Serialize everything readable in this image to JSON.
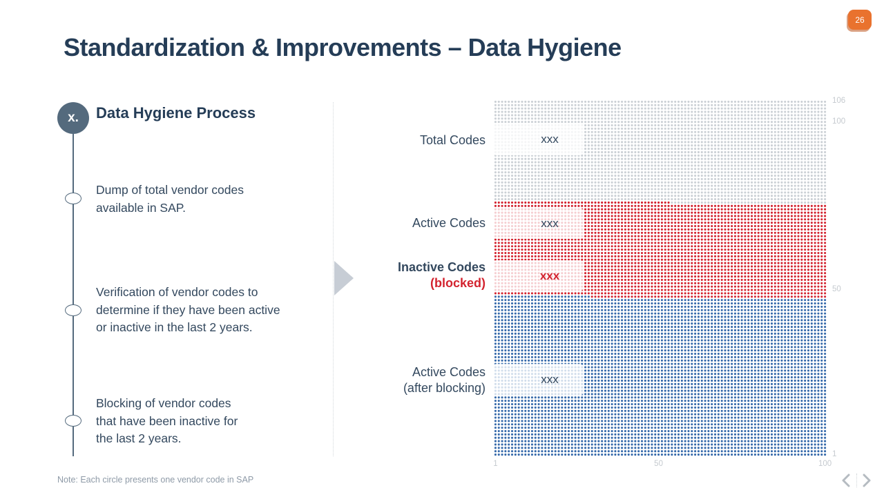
{
  "page": {
    "number": "26",
    "title": "Standardization & Improvements – Data Hygiene",
    "note": "Note: Each circle presents one vendor code in SAP"
  },
  "process": {
    "badge": "x.",
    "heading": "Data Hygiene Process",
    "steps": [
      {
        "text": "Dump of total vendor codes\navailable in SAP."
      },
      {
        "text": "Verification of vendor codes to\ndetermine if they have been active\nor inactive in the last 2 years."
      },
      {
        "text": "Blocking of vendor codes\nthat have been inactive for\nthe last 2 years."
      }
    ]
  },
  "chart_data": {
    "type": "waffle",
    "note": "each dot = one vendor code",
    "columns": 100,
    "rows": 106,
    "dot_colors": {
      "total": "#cbd0d5",
      "inactive": "#d3232f",
      "active": "#3569aa"
    },
    "fill_from_bottom": [
      {
        "series": "Active Codes (after blocking)",
        "color_key": "active",
        "dots": 4729
      },
      {
        "series": "Inactive Codes (blocked)",
        "color_key": "inactive",
        "dots": 2824
      },
      {
        "series": "Total Codes (remainder)",
        "color_key": "total",
        "dots": 3047
      }
    ],
    "y_axis_ticks": [
      {
        "label": "106",
        "row": 106
      },
      {
        "label": "100",
        "row": 100
      },
      {
        "label": "50",
        "row": 50
      },
      {
        "label": "1",
        "row": 1
      }
    ],
    "x_axis_ticks": [
      {
        "label": "1",
        "col": 1
      },
      {
        "label": "50",
        "col": 50
      },
      {
        "label": "100",
        "col": 100
      }
    ],
    "row_labels": [
      {
        "line1": "Total Codes",
        "line2": "",
        "value": "xxx"
      },
      {
        "line1": "Active Codes",
        "line2": "",
        "value": "xxx"
      },
      {
        "line1": "Inactive Codes",
        "line2": "(blocked)",
        "value": "xxx"
      },
      {
        "line1": "Active Codes",
        "line2": "(after blocking)",
        "value": "xxx"
      }
    ]
  }
}
